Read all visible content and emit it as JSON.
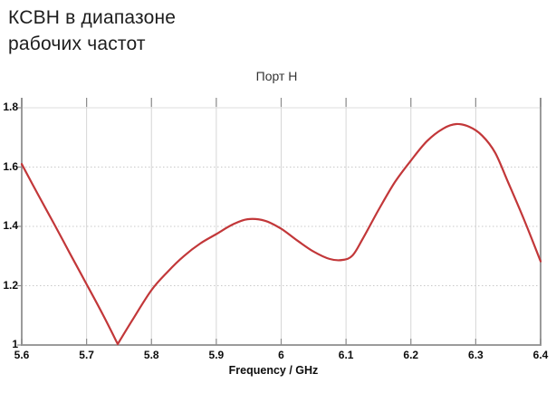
{
  "page": {
    "title": "КСВН в диапазоне\nрабочих частот"
  },
  "chart_data": {
    "type": "line",
    "title": "Порт Н",
    "xlabel": "Frequency / GHz",
    "ylabel": "",
    "xlim": [
      5.6,
      6.4
    ],
    "ylim": [
      1.0,
      1.8
    ],
    "x_ticks": [
      {
        "value": 5.6,
        "label": "5.6"
      },
      {
        "value": 5.7,
        "label": "5.7"
      },
      {
        "value": 5.8,
        "label": "5.8"
      },
      {
        "value": 5.9,
        "label": "5.9"
      },
      {
        "value": 6.0,
        "label": "6"
      },
      {
        "value": 6.1,
        "label": "6.1"
      },
      {
        "value": 6.2,
        "label": "6.2"
      },
      {
        "value": 6.3,
        "label": "6.3"
      },
      {
        "value": 6.4,
        "label": "6.4"
      }
    ],
    "y_ticks": [
      {
        "value": 1.8,
        "label": "1.8"
      },
      {
        "value": 1.6,
        "label": "1.6"
      },
      {
        "value": 1.4,
        "label": "1.4"
      },
      {
        "value": 1.2,
        "label": "1.2"
      },
      {
        "value": 1.0,
        "label": "1"
      }
    ],
    "grid": true,
    "legend": false,
    "series": [
      {
        "name": "КСВН Порт Н",
        "color": "#c23739",
        "points": [
          [
            5.6,
            1.61
          ],
          [
            5.625,
            1.508
          ],
          [
            5.65,
            1.408
          ],
          [
            5.675,
            1.306
          ],
          [
            5.7,
            1.205
          ],
          [
            5.725,
            1.103
          ],
          [
            5.748,
            1.003
          ],
          [
            5.77,
            1.082
          ],
          [
            5.8,
            1.185
          ],
          [
            5.825,
            1.247
          ],
          [
            5.85,
            1.3
          ],
          [
            5.875,
            1.342
          ],
          [
            5.9,
            1.374
          ],
          [
            5.925,
            1.406
          ],
          [
            5.948,
            1.424
          ],
          [
            5.975,
            1.419
          ],
          [
            6.0,
            1.392
          ],
          [
            6.025,
            1.352
          ],
          [
            6.05,
            1.315
          ],
          [
            6.075,
            1.29
          ],
          [
            6.095,
            1.287
          ],
          [
            6.11,
            1.302
          ],
          [
            6.125,
            1.355
          ],
          [
            6.15,
            1.455
          ],
          [
            6.175,
            1.548
          ],
          [
            6.2,
            1.622
          ],
          [
            6.225,
            1.688
          ],
          [
            6.25,
            1.73
          ],
          [
            6.27,
            1.745
          ],
          [
            6.29,
            1.736
          ],
          [
            6.31,
            1.706
          ],
          [
            6.33,
            1.648
          ],
          [
            6.35,
            1.548
          ],
          [
            6.375,
            1.42
          ],
          [
            6.4,
            1.282
          ]
        ]
      }
    ],
    "notable_points": {
      "sharp_minimum": [
        5.748,
        1.0
      ],
      "local_maximum": [
        5.948,
        1.425
      ],
      "local_minimum": [
        6.09,
        1.287
      ],
      "global_maximum": [
        6.27,
        1.745
      ]
    },
    "style_colors": {
      "curve": "#c23739",
      "grid_vertical": "#d6d6d6",
      "grid_horizontal": "#c9c9c9",
      "spine": "#9b9b9b",
      "tick": "#8c8c8c"
    }
  }
}
